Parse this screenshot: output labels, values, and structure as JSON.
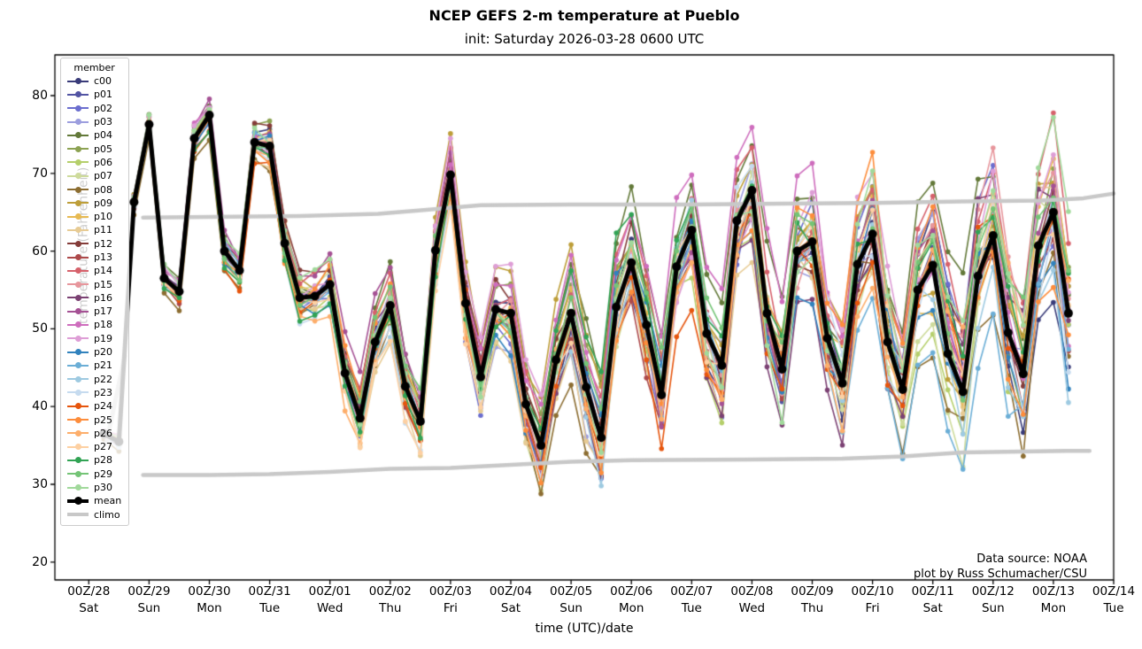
{
  "title": "NCEP GEFS 2-m temperature at Pueblo",
  "subtitle": "init: Saturday 2026-03-28 0600 UTC",
  "annotations": {
    "line1": "Data source: NOAA",
    "line2": "plot by Russ Schumacher/CSU"
  },
  "axes": {
    "xlabel": "time (UTC)/date",
    "ylabel": "temperature (Fahrenheit)",
    "yticks": [
      20,
      30,
      40,
      50,
      60,
      70,
      80
    ],
    "ylim": [
      17.7,
      85.2
    ],
    "xlim_days": [
      -0.56,
      17.0
    ],
    "xticks": [
      {
        "utc": "00Z/28",
        "day": "Sat"
      },
      {
        "utc": "00Z/29",
        "day": "Sun"
      },
      {
        "utc": "00Z/30",
        "day": "Mon"
      },
      {
        "utc": "00Z/31",
        "day": "Tue"
      },
      {
        "utc": "00Z/01",
        "day": "Wed"
      },
      {
        "utc": "00Z/02",
        "day": "Thu"
      },
      {
        "utc": "00Z/03",
        "day": "Fri"
      },
      {
        "utc": "00Z/04",
        "day": "Sat"
      },
      {
        "utc": "00Z/05",
        "day": "Sun"
      },
      {
        "utc": "00Z/06",
        "day": "Mon"
      },
      {
        "utc": "00Z/07",
        "day": "Tue"
      },
      {
        "utc": "00Z/08",
        "day": "Wed"
      },
      {
        "utc": "00Z/09",
        "day": "Thu"
      },
      {
        "utc": "00Z/10",
        "day": "Fri"
      },
      {
        "utc": "00Z/11",
        "day": "Sat"
      },
      {
        "utc": "00Z/12",
        "day": "Sun"
      },
      {
        "utc": "00Z/13",
        "day": "Mon"
      },
      {
        "utc": "00Z/14",
        "day": "Tue"
      }
    ]
  },
  "legend": {
    "title": "member"
  },
  "chart_data": {
    "type": "line",
    "x_start": "2026-03-28 0600 UTC",
    "x_step_hours": 6,
    "n_points": 65,
    "mean": [
      36.5,
      35.5,
      66.3,
      76.3,
      56.5,
      54.8,
      74.5,
      77.5,
      60,
      57.5,
      74,
      73.5,
      61,
      54,
      54.2,
      55.7,
      44.3,
      38.5,
      48.3,
      53,
      42.6,
      38.1,
      60.1,
      69.8,
      53.3,
      43.8,
      52.5,
      52,
      40.3,
      35,
      46,
      52,
      42.5,
      36,
      52.8,
      58.5,
      50.5,
      41.5,
      58,
      62.7,
      49.4,
      45.3,
      63.9,
      67.8,
      52,
      44.8,
      60,
      61.2,
      48.8,
      43,
      58.3,
      62.2,
      48.3,
      42.2,
      55,
      58.2,
      46.8,
      41.9,
      56.8,
      62,
      49.5,
      44.2,
      60.7,
      65,
      52
    ],
    "mean_color": "#000000",
    "climo_color": "#c8c8c8",
    "climo_upper": {
      "x_days": [
        0.9,
        2,
        3.5,
        4.8,
        5.6,
        6.5,
        8,
        10,
        11.5,
        13,
        14.5,
        15.8,
        16.5,
        17
      ],
      "values": [
        64.3,
        64.4,
        64.5,
        64.8,
        65.3,
        65.9,
        66,
        66,
        66.1,
        66.2,
        66.4,
        66.5,
        66.8,
        67.4
      ]
    },
    "climo_lower": {
      "x_days": [
        0.9,
        2,
        3,
        4,
        5,
        6,
        7,
        8,
        9,
        11,
        12.5,
        13.5,
        14.5,
        16.2,
        16.6
      ],
      "values": [
        31.2,
        31.2,
        31.3,
        31.6,
        32,
        32.1,
        32.5,
        32.9,
        33.1,
        33.2,
        33.3,
        33.6,
        34.1,
        34.3,
        34.3
      ]
    },
    "member_spread": {
      "amp_base": 0.5,
      "amp_scale": 10,
      "amp_pow": 0.85,
      "ar": 0.8,
      "innov": 0.62,
      "clamp": 2,
      "gain": 0.8,
      "vmin": 22,
      "vmax": 83.5
    },
    "members": [
      {
        "name": "c00",
        "color": "#393b79",
        "bias": -0.1,
        "seed": 3
      },
      {
        "name": "p01",
        "color": "#5254a3",
        "bias": -0.35,
        "seed": 7
      },
      {
        "name": "p02",
        "color": "#6b6ecf",
        "bias": 0.05,
        "seed": 11
      },
      {
        "name": "p03",
        "color": "#9c9ede",
        "bias": 0.15,
        "seed": 15
      },
      {
        "name": "p04",
        "color": "#637939",
        "bias": 0.85,
        "seed": 19
      },
      {
        "name": "p05",
        "color": "#8ca252",
        "bias": 0.3,
        "seed": 23
      },
      {
        "name": "p06",
        "color": "#b5cf6b",
        "bias": -0.75,
        "seed": 27
      },
      {
        "name": "p07",
        "color": "#cedb9c",
        "bias": -0.2,
        "seed": 31
      },
      {
        "name": "p08",
        "color": "#8c6d31",
        "bias": -0.9,
        "seed": 35
      },
      {
        "name": "p09",
        "color": "#bd9e39",
        "bias": 0.55,
        "seed": 39
      },
      {
        "name": "p10",
        "color": "#e7ba52",
        "bias": 0.35,
        "seed": 43
      },
      {
        "name": "p11",
        "color": "#e7cb94",
        "bias": -0.45,
        "seed": 47
      },
      {
        "name": "p12",
        "color": "#843c39",
        "bias": -0.5,
        "seed": 51
      },
      {
        "name": "p13",
        "color": "#ad494a",
        "bias": -0.25,
        "seed": 55
      },
      {
        "name": "p14",
        "color": "#d6616b",
        "bias": 0.45,
        "seed": 59
      },
      {
        "name": "p15",
        "color": "#e7969c",
        "bias": 0.1,
        "seed": 63
      },
      {
        "name": "p16",
        "color": "#7b4173",
        "bias": 0.2,
        "seed": 67
      },
      {
        "name": "p17",
        "color": "#a55194",
        "bias": 0.5,
        "seed": 71
      },
      {
        "name": "p18",
        "color": "#ce6dbd",
        "bias": 0.65,
        "seed": 75
      },
      {
        "name": "p19",
        "color": "#de9ed6",
        "bias": 0.25,
        "seed": 79
      },
      {
        "name": "p20",
        "color": "#3182bd",
        "bias": -0.3,
        "seed": 83
      },
      {
        "name": "p21",
        "color": "#6baed6",
        "bias": -0.05,
        "seed": 87
      },
      {
        "name": "p22",
        "color": "#9ecae1",
        "bias": -0.55,
        "seed": 91
      },
      {
        "name": "p23",
        "color": "#c6dbef",
        "bias": -0.7,
        "seed": 95
      },
      {
        "name": "p24",
        "color": "#e6550d",
        "bias": 0.0,
        "seed": 99
      },
      {
        "name": "p25",
        "color": "#fd8d3c",
        "bias": 0.2,
        "seed": 103
      },
      {
        "name": "p26",
        "color": "#fdae6b",
        "bias": -0.15,
        "seed": 107
      },
      {
        "name": "p27",
        "color": "#fdd0a2",
        "bias": -0.5,
        "seed": 111
      },
      {
        "name": "p28",
        "color": "#31a354",
        "bias": 0.15,
        "seed": 115
      },
      {
        "name": "p29",
        "color": "#74c476",
        "bias": 0.4,
        "seed": 119
      },
      {
        "name": "p30",
        "color": "#a1d99b",
        "bias": 0.05,
        "seed": 123
      }
    ],
    "mean_label": "mean",
    "climo_label": "climo"
  }
}
